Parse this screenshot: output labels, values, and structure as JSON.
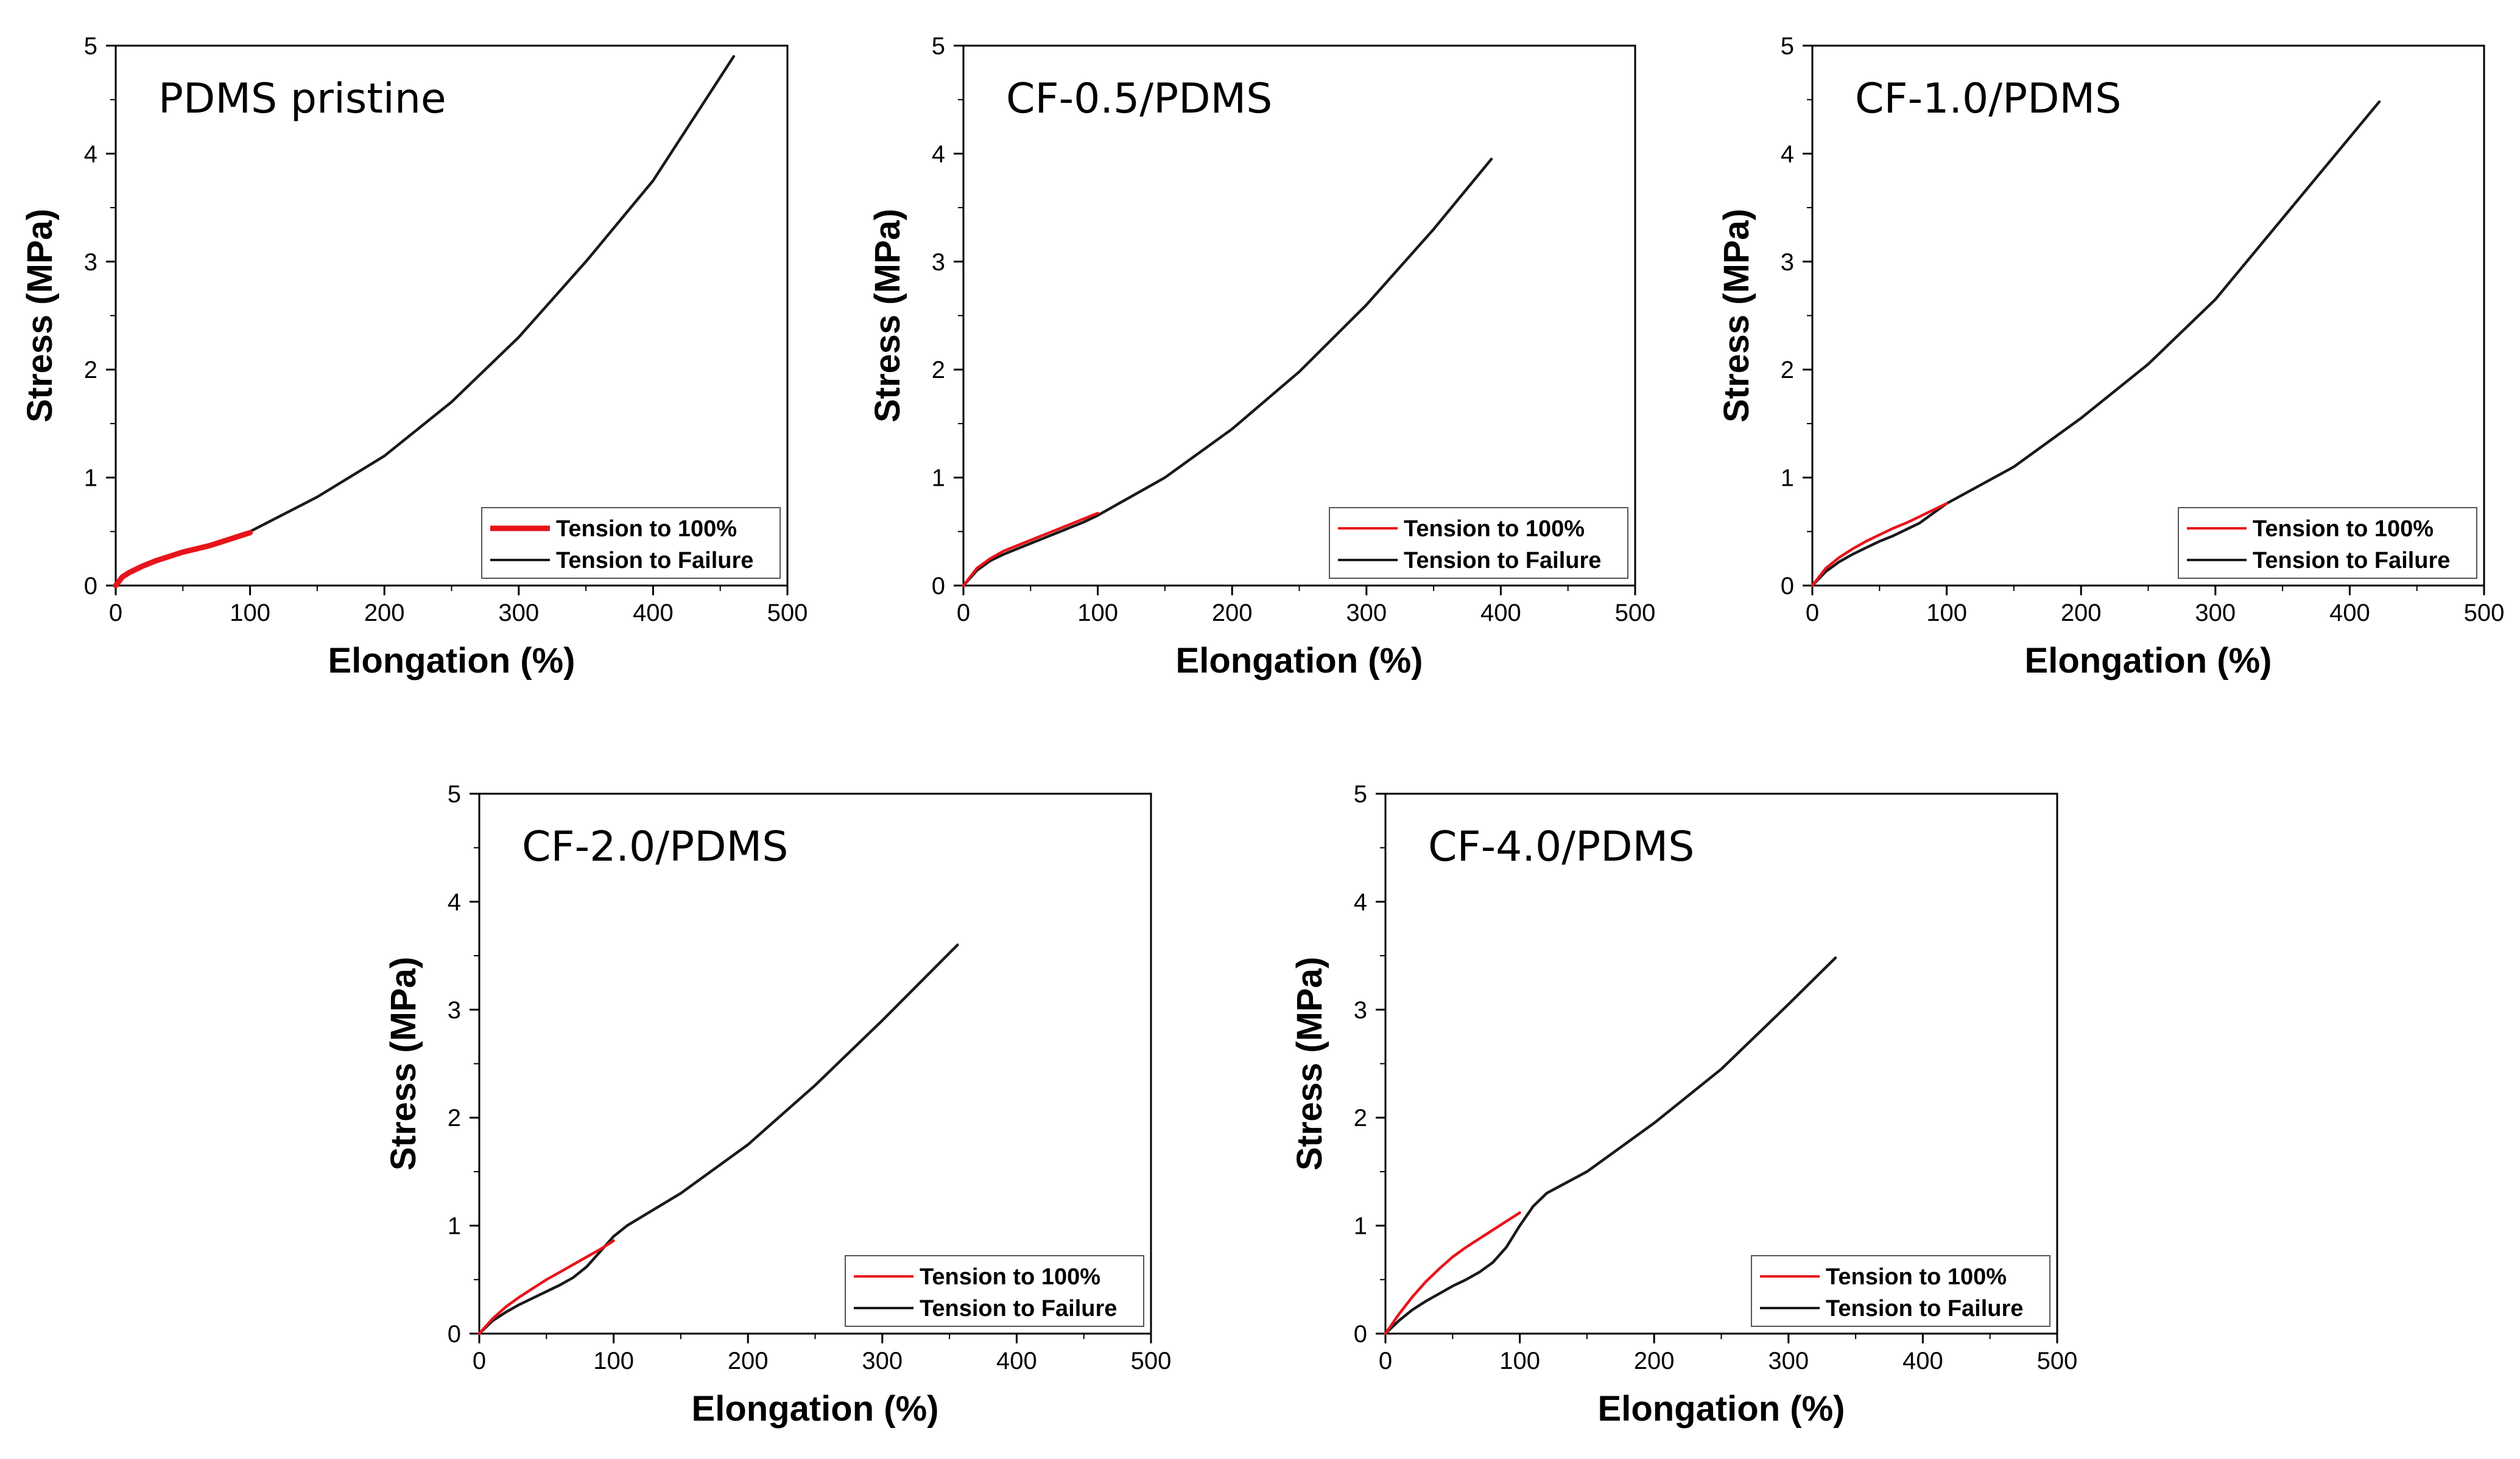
{
  "chart_data": [
    {
      "type": "line",
      "title": "PDMS pristine",
      "xlabel": "Elongation (%)",
      "ylabel": "Stress (MPa)",
      "xlim": [
        0,
        500
      ],
      "ylim": [
        0,
        5
      ],
      "xticks": [
        "0",
        "100",
        "200",
        "300",
        "400",
        "500"
      ],
      "yticks": [
        "0",
        "1",
        "2",
        "3",
        "4",
        "5"
      ],
      "legend_position": "bottom-right",
      "series": [
        {
          "name": "Tension to 100%",
          "color": "#e8141b",
          "thick": true,
          "x": [
            0,
            5,
            10,
            20,
            30,
            40,
            50,
            60,
            70,
            80,
            90,
            100
          ],
          "y": [
            0,
            0.08,
            0.12,
            0.18,
            0.23,
            0.27,
            0.31,
            0.34,
            0.37,
            0.41,
            0.45,
            0.49
          ]
        },
        {
          "name": "Tension to Failure",
          "color": "#1a1a1a",
          "thick": false,
          "x": [
            0,
            5,
            10,
            20,
            30,
            40,
            50,
            60,
            70,
            80,
            90,
            100,
            150,
            200,
            250,
            300,
            350,
            400,
            460
          ],
          "y": [
            0,
            0.08,
            0.12,
            0.18,
            0.23,
            0.27,
            0.31,
            0.34,
            0.37,
            0.41,
            0.45,
            0.5,
            0.82,
            1.2,
            1.7,
            2.3,
            3.0,
            3.75,
            4.9
          ]
        }
      ]
    },
    {
      "type": "line",
      "title": "CF-0.5/PDMS",
      "xlabel": "Elongation (%)",
      "ylabel": "Stress (MPa)",
      "xlim": [
        0,
        500
      ],
      "ylim": [
        0,
        5
      ],
      "xticks": [
        "0",
        "100",
        "200",
        "300",
        "400",
        "500"
      ],
      "yticks": [
        "0",
        "1",
        "2",
        "3",
        "4",
        "5"
      ],
      "legend_position": "bottom-right",
      "series": [
        {
          "name": "Tension to 100%",
          "color": "#e8141b",
          "thick": false,
          "x": [
            0,
            10,
            20,
            30,
            40,
            50,
            60,
            70,
            80,
            90,
            100
          ],
          "y": [
            0,
            0.16,
            0.25,
            0.32,
            0.37,
            0.42,
            0.47,
            0.52,
            0.57,
            0.62,
            0.67
          ]
        },
        {
          "name": "Tension to Failure",
          "color": "#1a1a1a",
          "thick": false,
          "x": [
            0,
            10,
            20,
            30,
            40,
            50,
            60,
            70,
            80,
            90,
            100,
            150,
            200,
            250,
            300,
            350,
            393
          ],
          "y": [
            0,
            0.14,
            0.23,
            0.29,
            0.34,
            0.39,
            0.44,
            0.49,
            0.54,
            0.59,
            0.65,
            1.0,
            1.45,
            1.98,
            2.6,
            3.3,
            3.95
          ]
        }
      ]
    },
    {
      "type": "line",
      "title": "CF-1.0/PDMS",
      "xlabel": "Elongation (%)",
      "ylabel": "Stress (MPa)",
      "xlim": [
        0,
        500
      ],
      "ylim": [
        0,
        5
      ],
      "xticks": [
        "0",
        "100",
        "200",
        "300",
        "400",
        "500"
      ],
      "yticks": [
        "0",
        "1",
        "2",
        "3",
        "4",
        "5"
      ],
      "legend_position": "bottom-right",
      "series": [
        {
          "name": "Tension to 100%",
          "color": "#e8141b",
          "thick": false,
          "x": [
            0,
            10,
            20,
            30,
            40,
            50,
            60,
            70,
            80,
            90,
            100
          ],
          "y": [
            0,
            0.16,
            0.26,
            0.34,
            0.41,
            0.47,
            0.53,
            0.58,
            0.64,
            0.7,
            0.76
          ]
        },
        {
          "name": "Tension to Failure",
          "color": "#1a1a1a",
          "thick": false,
          "x": [
            0,
            10,
            20,
            30,
            40,
            50,
            60,
            70,
            80,
            90,
            100,
            150,
            200,
            250,
            300,
            350,
            422
          ],
          "y": [
            0,
            0.13,
            0.22,
            0.29,
            0.35,
            0.41,
            0.46,
            0.52,
            0.58,
            0.67,
            0.76,
            1.1,
            1.55,
            2.05,
            2.65,
            3.4,
            4.48
          ]
        }
      ]
    },
    {
      "type": "line",
      "title": "CF-2.0/PDMS",
      "xlabel": "Elongation (%)",
      "ylabel": "Stress (MPa)",
      "xlim": [
        0,
        500
      ],
      "ylim": [
        0,
        5
      ],
      "xticks": [
        "0",
        "100",
        "200",
        "300",
        "400",
        "500"
      ],
      "yticks": [
        "0",
        "1",
        "2",
        "3",
        "4",
        "5"
      ],
      "legend_position": "bottom-right",
      "series": [
        {
          "name": "Tension to 100%",
          "color": "#e8141b",
          "thick": false,
          "x": [
            0,
            10,
            20,
            30,
            40,
            50,
            60,
            70,
            80,
            90,
            100
          ],
          "y": [
            0,
            0.14,
            0.25,
            0.34,
            0.42,
            0.5,
            0.57,
            0.64,
            0.71,
            0.78,
            0.86
          ]
        },
        {
          "name": "Tension to Failure",
          "color": "#1a1a1a",
          "thick": false,
          "x": [
            0,
            10,
            20,
            30,
            40,
            50,
            60,
            70,
            80,
            90,
            100,
            110,
            150,
            200,
            250,
            300,
            356
          ],
          "y": [
            0,
            0.12,
            0.2,
            0.27,
            0.33,
            0.39,
            0.45,
            0.52,
            0.62,
            0.76,
            0.9,
            1.0,
            1.3,
            1.75,
            2.3,
            2.9,
            3.6
          ]
        }
      ]
    },
    {
      "type": "line",
      "title": "CF-4.0/PDMS",
      "xlabel": "Elongation (%)",
      "ylabel": "Stress (MPa)",
      "xlim": [
        0,
        500
      ],
      "ylim": [
        0,
        5
      ],
      "xticks": [
        "0",
        "100",
        "200",
        "300",
        "400",
        "500"
      ],
      "yticks": [
        "0",
        "1",
        "2",
        "3",
        "4",
        "5"
      ],
      "legend_position": "bottom-right",
      "series": [
        {
          "name": "Tension to 100%",
          "color": "#e8141b",
          "thick": false,
          "x": [
            0,
            10,
            20,
            30,
            40,
            50,
            60,
            70,
            80,
            90,
            100
          ],
          "y": [
            0,
            0.18,
            0.34,
            0.48,
            0.6,
            0.71,
            0.8,
            0.88,
            0.96,
            1.04,
            1.12
          ]
        },
        {
          "name": "Tension to Failure",
          "color": "#1a1a1a",
          "thick": false,
          "x": [
            0,
            10,
            20,
            30,
            40,
            50,
            60,
            70,
            80,
            90,
            100,
            110,
            120,
            150,
            200,
            250,
            300,
            335
          ],
          "y": [
            0,
            0.12,
            0.22,
            0.3,
            0.37,
            0.44,
            0.5,
            0.57,
            0.66,
            0.8,
            1.0,
            1.18,
            1.3,
            1.5,
            1.95,
            2.45,
            3.05,
            3.48
          ]
        }
      ]
    }
  ]
}
